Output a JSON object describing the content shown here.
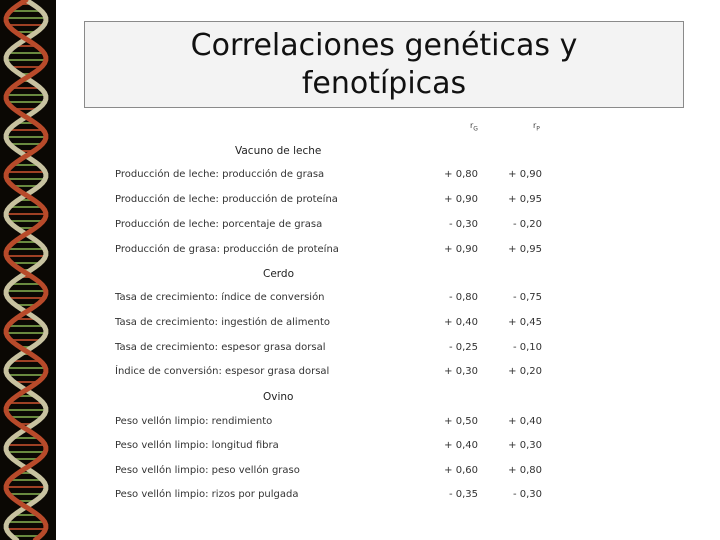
{
  "slide": {
    "title": "Correlaciones genéticas y fenotípicas"
  },
  "table": {
    "headers": {
      "rg_main": "r",
      "rg_sub": "G",
      "rp_main": "r",
      "rp_sub": "P"
    },
    "sections": [
      {
        "name": "Vacuno de leche",
        "rows": [
          {
            "label": "Producción de leche: producción de grasa",
            "rg": "+ 0,80",
            "rp": "+ 0,90"
          },
          {
            "label": "Producción de leche: producción de proteína",
            "rg": "+ 0,90",
            "rp": "+ 0,95"
          },
          {
            "label": "Producción de leche: porcentaje de grasa",
            "rg": "- 0,30",
            "rp": "- 0,20"
          },
          {
            "label": "Producción de grasa: producción de proteína",
            "rg": "+ 0,90",
            "rp": "+ 0,95"
          }
        ]
      },
      {
        "name": "Cerdo",
        "rows": [
          {
            "label": "Tasa de crecimiento: índice de conversión",
            "rg": "- 0,80",
            "rp": "- 0,75"
          },
          {
            "label": "Tasa de crecimiento: ingestión de alimento",
            "rg": "+ 0,40",
            "rp": "+ 0,45"
          },
          {
            "label": "Tasa de crecimiento: espesor grasa dorsal",
            "rg": "- 0,25",
            "rp": "- 0,10"
          },
          {
            "label": "Índice de conversión: espesor grasa dorsal",
            "rg": "+ 0,30",
            "rp": "+ 0,20"
          }
        ]
      },
      {
        "name": "Ovino",
        "rows": [
          {
            "label": "Peso vellón limpio: rendimiento",
            "rg": "+ 0,50",
            "rp": "+ 0,40"
          },
          {
            "label": "Peso vellón limpio: longitud fibra",
            "rg": "+ 0,40",
            "rp": "+ 0,30"
          },
          {
            "label": "Peso vellón limpio: peso vellón graso",
            "rg": "+ 0,60",
            "rp": "+ 0,80"
          },
          {
            "label": "Peso vellón limpio: rizos por pulgada",
            "rg": "- 0,35",
            "rp": "- 0,30"
          }
        ]
      }
    ]
  },
  "colors": {
    "dna_background": "#0b0804",
    "dna_strand_a": "#c8c2a0",
    "dna_strand_b": "#b84a2a",
    "dna_rung": "#7aa04a"
  }
}
